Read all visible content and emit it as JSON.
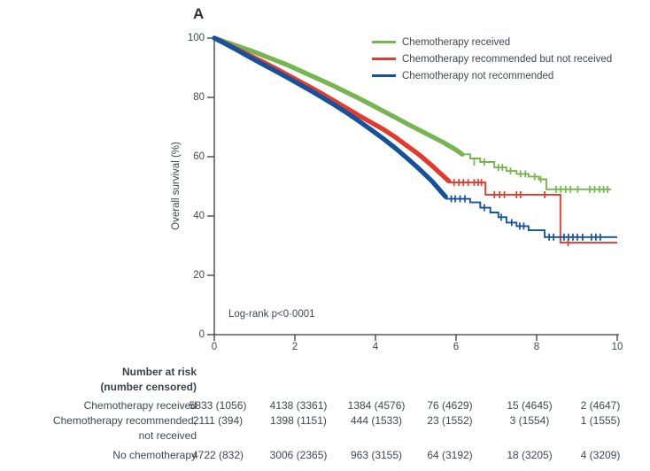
{
  "panel_label": "A",
  "annotation": "Log-rank p<0·0001",
  "colors": {
    "received": "#76b550",
    "recommended_not_received": "#e43a2c",
    "not_recommended": "#15529e",
    "axis": "#3a3a3a",
    "text": "#41484e"
  },
  "legend": {
    "items": [
      {
        "label": "Chemotherapy received",
        "color": "#76b550"
      },
      {
        "label": "Chemotherapy recommended but not received",
        "color": "#e43a2c"
      },
      {
        "label": "Chemotherapy not recommended",
        "color": "#15529e"
      }
    ]
  },
  "chart_data": {
    "type": "line",
    "subtype": "kaplan-meier",
    "title": "",
    "xlabel": "",
    "ylabel": "Overall survival (%)",
    "xlim": [
      0,
      10
    ],
    "ylim": [
      0,
      100
    ],
    "x_ticks": [
      0,
      2,
      4,
      6,
      8,
      10
    ],
    "y_ticks": [
      0,
      20,
      40,
      60,
      80,
      100
    ],
    "grid": false,
    "legend_position": "top-right",
    "annotation": "Log-rank p<0·0001",
    "series": [
      {
        "name": "Chemotherapy received",
        "color": "#76b550",
        "dense": [
          [
            0,
            100
          ],
          [
            0.3,
            98.6
          ],
          [
            0.6,
            97.2
          ],
          [
            0.9,
            95.8
          ],
          [
            1.2,
            94.2
          ],
          [
            1.5,
            92.6
          ],
          [
            1.8,
            91.0
          ],
          [
            2.1,
            89.2
          ],
          [
            2.4,
            87.3
          ],
          [
            2.7,
            85.5
          ],
          [
            3.0,
            83.6
          ],
          [
            3.3,
            81.6
          ],
          [
            3.6,
            79.6
          ],
          [
            3.9,
            77.5
          ],
          [
            4.2,
            75.3
          ],
          [
            4.5,
            73.2
          ],
          [
            4.8,
            71.0
          ],
          [
            5.1,
            68.9
          ],
          [
            5.4,
            66.8
          ],
          [
            5.7,
            64.7
          ],
          [
            6.0,
            62.3
          ],
          [
            6.15,
            60.8
          ]
        ],
        "steps": [
          [
            6.15,
            60.8
          ],
          [
            6.35,
            59.4
          ],
          [
            6.6,
            58.2
          ],
          [
            6.95,
            56.4
          ],
          [
            7.25,
            55.2
          ],
          [
            7.5,
            54.2
          ],
          [
            7.8,
            53.3
          ],
          [
            8.05,
            52.4
          ],
          [
            8.24,
            49.0
          ],
          [
            9.85,
            49.0
          ]
        ],
        "censors": [
          [
            6.45,
            58.2
          ],
          [
            6.7,
            58.2
          ],
          [
            7.05,
            56.4
          ],
          [
            7.15,
            56.4
          ],
          [
            7.35,
            55.2
          ],
          [
            7.6,
            54.2
          ],
          [
            7.72,
            54.2
          ],
          [
            7.95,
            53.3
          ],
          [
            8.1,
            52.4
          ],
          [
            8.48,
            49.0
          ],
          [
            8.6,
            49.0
          ],
          [
            8.72,
            49.0
          ],
          [
            8.84,
            49.0
          ],
          [
            9.02,
            49.0
          ],
          [
            9.32,
            49.0
          ],
          [
            9.44,
            49.0
          ],
          [
            9.56,
            49.0
          ],
          [
            9.66,
            49.0
          ],
          [
            9.76,
            49.0
          ]
        ]
      },
      {
        "name": "Chemotherapy recommended but not received",
        "color": "#e43a2c",
        "dense": [
          [
            0,
            100
          ],
          [
            0.3,
            98.1
          ],
          [
            0.6,
            96.1
          ],
          [
            0.9,
            94.0
          ],
          [
            1.2,
            92.0
          ],
          [
            1.5,
            89.9
          ],
          [
            1.8,
            87.7
          ],
          [
            2.1,
            85.5
          ],
          [
            2.4,
            83.3
          ],
          [
            2.7,
            81.0
          ],
          [
            3.0,
            78.6
          ],
          [
            3.3,
            76.2
          ],
          [
            3.6,
            73.8
          ],
          [
            3.9,
            71.5
          ],
          [
            4.2,
            69.2
          ],
          [
            4.5,
            66.5
          ],
          [
            4.8,
            63.5
          ],
          [
            5.1,
            60.5
          ],
          [
            5.4,
            57.0
          ],
          [
            5.6,
            54.5
          ],
          [
            5.82,
            51.8
          ]
        ],
        "steps": [
          [
            5.82,
            51.3
          ],
          [
            6.73,
            47.2
          ],
          [
            8.59,
            31.0
          ],
          [
            10,
            31.0
          ]
        ],
        "censors": [
          [
            5.95,
            51.3
          ],
          [
            6.07,
            51.3
          ],
          [
            6.18,
            51.3
          ],
          [
            6.3,
            51.3
          ],
          [
            6.45,
            51.3
          ],
          [
            6.55,
            51.3
          ],
          [
            6.63,
            51.3
          ],
          [
            6.95,
            47.2
          ],
          [
            7.08,
            47.2
          ],
          [
            7.2,
            47.2
          ],
          [
            7.5,
            47.2
          ],
          [
            7.6,
            47.2
          ],
          [
            8.2,
            47.2
          ],
          [
            8.78,
            31.0
          ]
        ]
      },
      {
        "name": "Chemotherapy not recommended",
        "color": "#15529e",
        "dense": [
          [
            0,
            100
          ],
          [
            0.3,
            97.9
          ],
          [
            0.6,
            95.7
          ],
          [
            0.9,
            93.4
          ],
          [
            1.2,
            91.2
          ],
          [
            1.5,
            89.0
          ],
          [
            1.8,
            86.8
          ],
          [
            2.1,
            84.5
          ],
          [
            2.4,
            82.2
          ],
          [
            2.7,
            79.8
          ],
          [
            3.0,
            77.3
          ],
          [
            3.3,
            74.7
          ],
          [
            3.6,
            71.9
          ],
          [
            3.9,
            69.0
          ],
          [
            4.2,
            66.0
          ],
          [
            4.5,
            62.8
          ],
          [
            4.8,
            59.3
          ],
          [
            5.1,
            55.7
          ],
          [
            5.4,
            51.8
          ],
          [
            5.74,
            46.5
          ]
        ],
        "steps": [
          [
            5.74,
            45.8
          ],
          [
            6.35,
            44.6
          ],
          [
            6.6,
            42.8
          ],
          [
            6.85,
            41.2
          ],
          [
            7.05,
            39.6
          ],
          [
            7.25,
            37.8
          ],
          [
            7.5,
            36.6
          ],
          [
            7.8,
            35.2
          ],
          [
            8.2,
            32.9
          ],
          [
            10,
            32.9
          ]
        ],
        "censors": [
          [
            5.88,
            45.8
          ],
          [
            5.98,
            45.8
          ],
          [
            6.1,
            45.8
          ],
          [
            6.22,
            45.8
          ],
          [
            6.7,
            42.8
          ],
          [
            7.12,
            39.6
          ],
          [
            7.38,
            37.8
          ],
          [
            7.58,
            36.6
          ],
          [
            7.68,
            36.6
          ],
          [
            8.31,
            32.9
          ],
          [
            8.42,
            32.9
          ],
          [
            8.68,
            32.9
          ],
          [
            8.79,
            32.9
          ],
          [
            8.9,
            32.9
          ],
          [
            9.01,
            32.9
          ],
          [
            9.14,
            32.9
          ],
          [
            9.36,
            32.9
          ],
          [
            9.47,
            32.9
          ],
          [
            9.58,
            32.9
          ]
        ]
      }
    ]
  },
  "risk_table": {
    "header": [
      "Number at risk",
      "(number censored)"
    ],
    "rows": [
      {
        "label_lines": [
          "Chemotherapy received"
        ],
        "values": [
          "5833 (1056)",
          "4138 (3361)",
          "1384 (4576)",
          "76 (4629)",
          "15 (4645)",
          "2 (4647)"
        ]
      },
      {
        "label_lines": [
          "Chemotherapy recommended,",
          "not received"
        ],
        "values": [
          "2111 (394)",
          "1398 (1151)",
          "444 (1533)",
          "23 (1552)",
          "3 (1554)",
          "1 (1555)"
        ]
      },
      {
        "label_lines": [
          "No chemotherapy"
        ],
        "values": [
          "4722 (832)",
          "3006 (2365)",
          "963 (3155)",
          "64 (3192)",
          "18 (3205)",
          "4 (3209)"
        ]
      }
    ]
  }
}
